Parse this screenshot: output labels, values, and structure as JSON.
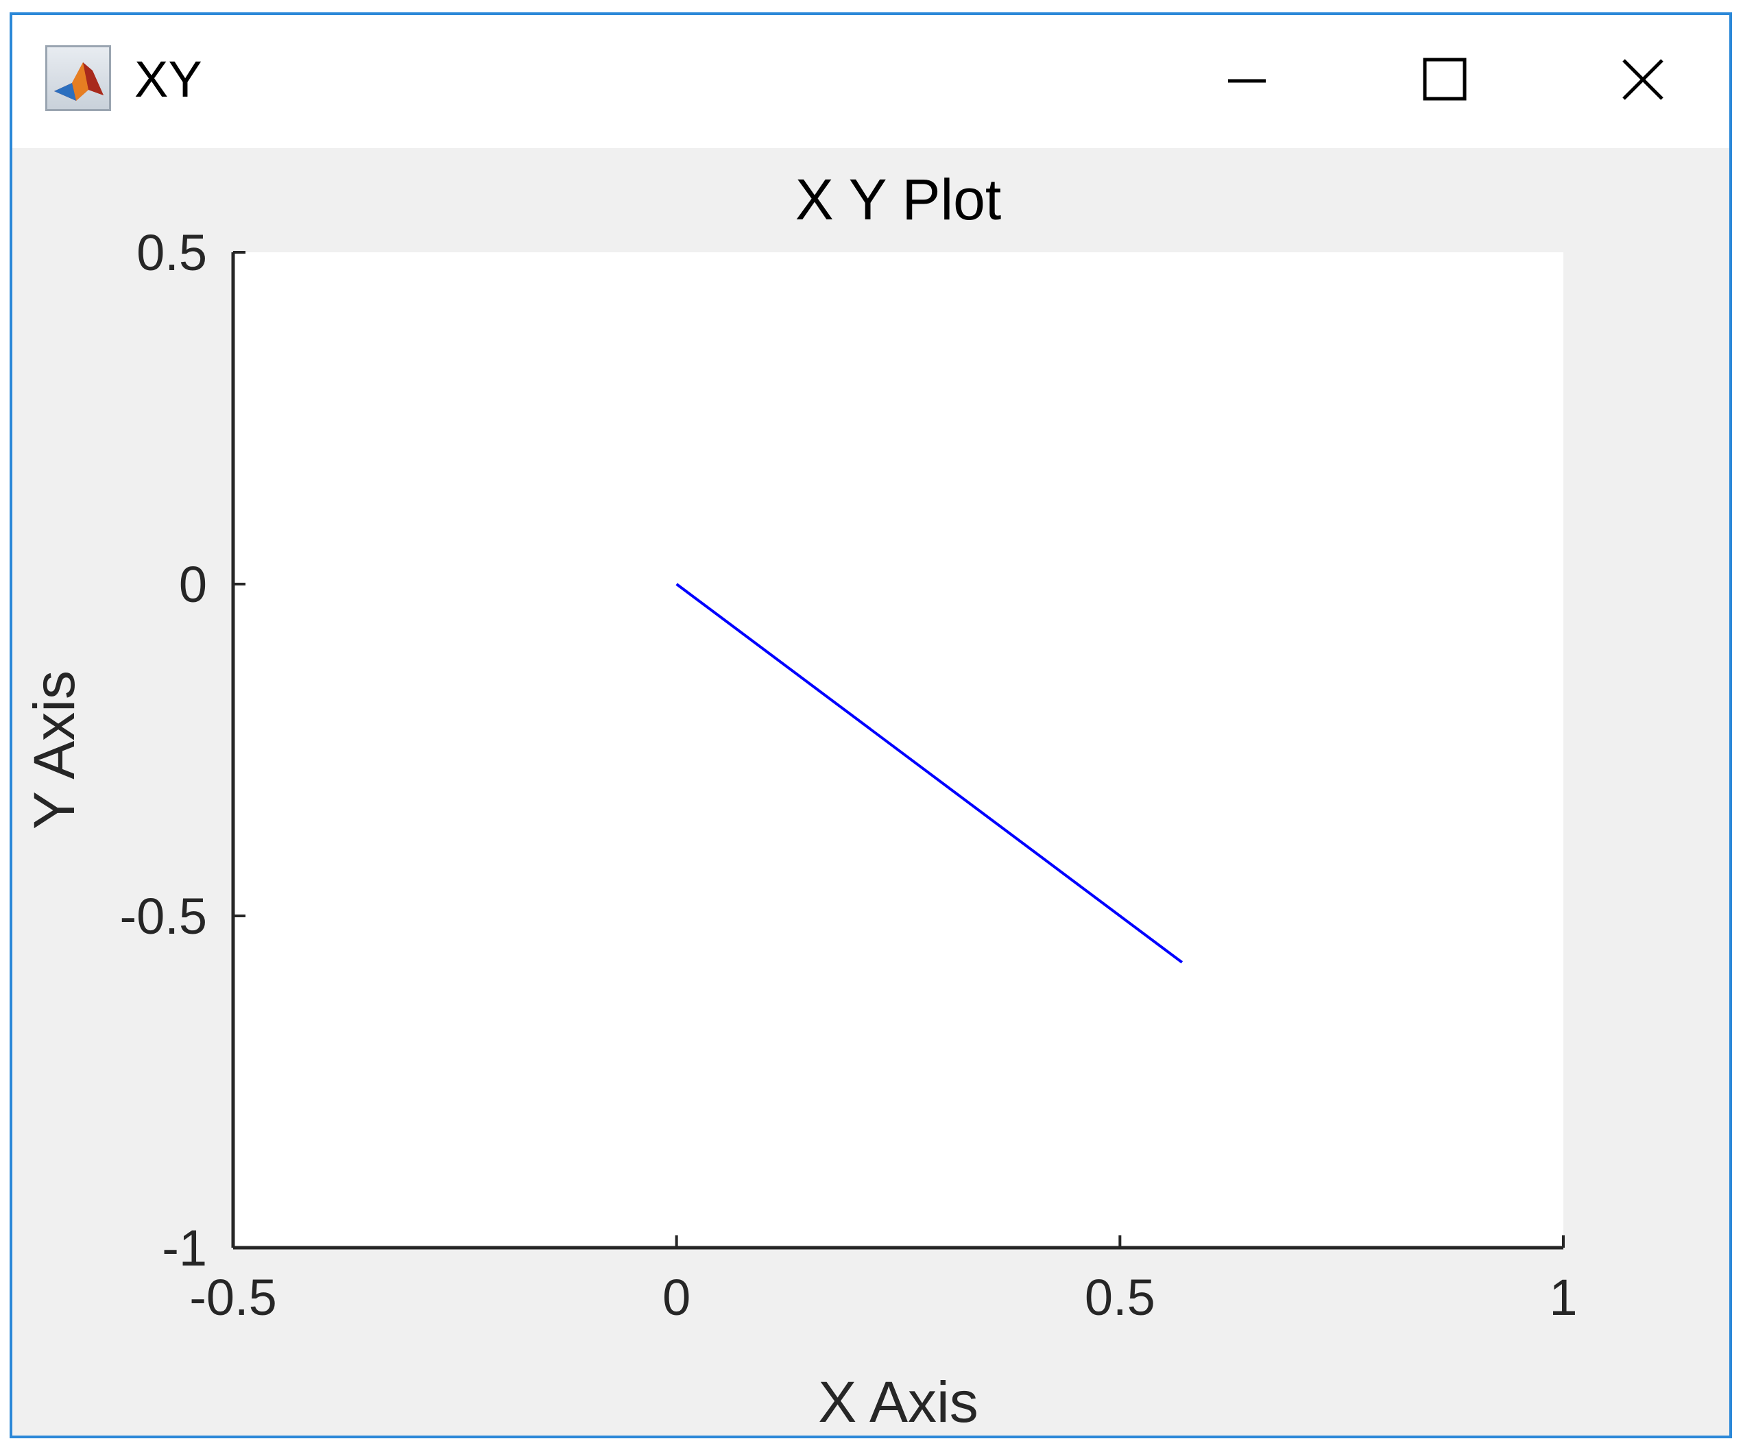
{
  "window": {
    "title": "XY",
    "accent_color": "#2b88d8",
    "app_icon": "matlab-logo-icon",
    "controls": {
      "minimize_icon": "minimize-icon",
      "maximize_icon": "maximize-icon",
      "close_icon": "close-icon"
    }
  },
  "chart_data": {
    "type": "line",
    "title": "X Y Plot",
    "xlabel": "X Axis",
    "ylabel": "Y Axis",
    "xlim": [
      -0.5,
      1
    ],
    "ylim": [
      -1,
      0.5
    ],
    "xticks": [
      -0.5,
      0,
      0.5,
      1
    ],
    "xtick_labels": [
      "-0.5",
      "0",
      "0.5",
      "1"
    ],
    "yticks": [
      -1,
      -0.5,
      0,
      0.5
    ],
    "ytick_labels": [
      "-1",
      "-0.5",
      "0",
      "0.5"
    ],
    "grid": false,
    "series": [
      {
        "x": [
          0,
          0.57
        ],
        "y": [
          0,
          -0.57
        ],
        "color": "#0000ff"
      }
    ]
  }
}
